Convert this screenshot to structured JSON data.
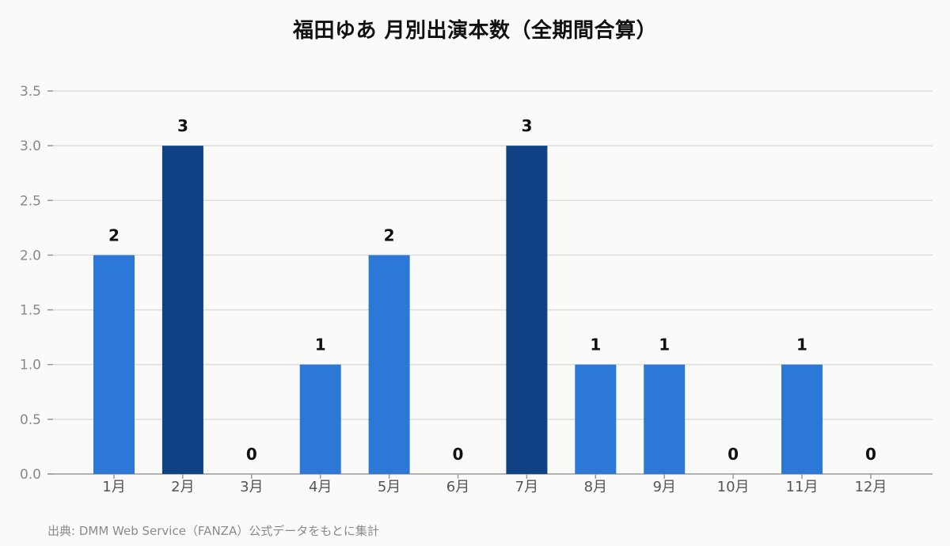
{
  "title": "福田ゆあ 月別出演本数（全期間合算）",
  "source": "出典: DMM Web Service（FANZA）公式データをもとに集計",
  "colors": {
    "bar": "#2b78d6",
    "bar_highlight": "#0f4285",
    "grid": "#dddddd",
    "axis": "#999999",
    "background": "#fafaf8"
  },
  "chart_data": {
    "type": "bar",
    "title": "福田ゆあ 月別出演本数（全期間合算）",
    "categories": [
      "1月",
      "2月",
      "3月",
      "4月",
      "5月",
      "6月",
      "7月",
      "8月",
      "9月",
      "10月",
      "11月",
      "12月"
    ],
    "values": [
      2,
      3,
      0,
      1,
      2,
      0,
      3,
      1,
      1,
      0,
      1,
      0
    ],
    "highlighted": [
      false,
      true,
      false,
      false,
      false,
      false,
      true,
      false,
      false,
      false,
      false,
      false
    ],
    "yticks": [
      "0.0",
      "0.5",
      "1.0",
      "1.5",
      "2.0",
      "2.5",
      "3.0",
      "3.5"
    ],
    "ylim": [
      0,
      3.5
    ],
    "xlabel": "",
    "ylabel": "",
    "grid": true,
    "data_labels": true
  }
}
